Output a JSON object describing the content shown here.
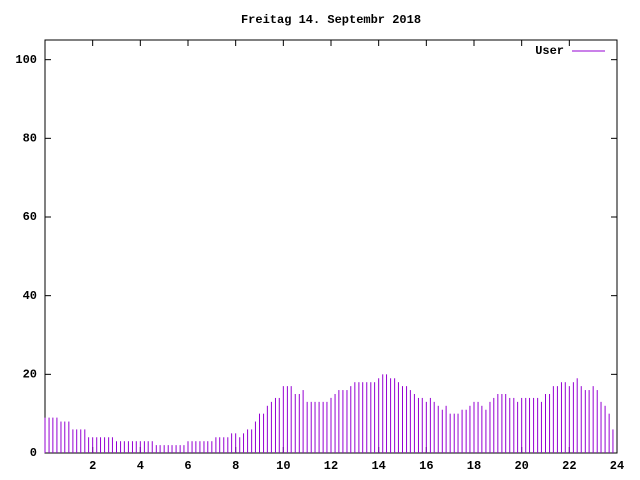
{
  "chart_data": {
    "type": "impulse",
    "title": "Freitag 14. Septembr 2018",
    "x": [
      0,
      0.17,
      0.33,
      0.5,
      0.67,
      0.83,
      1,
      1.17,
      1.33,
      1.5,
      1.67,
      1.83,
      2,
      2.17,
      2.33,
      2.5,
      2.67,
      2.83,
      3,
      3.17,
      3.33,
      3.5,
      3.67,
      3.83,
      4,
      4.17,
      4.33,
      4.5,
      4.67,
      4.83,
      5,
      5.17,
      5.33,
      5.5,
      5.67,
      5.83,
      6,
      6.17,
      6.33,
      6.5,
      6.67,
      6.83,
      7,
      7.17,
      7.33,
      7.5,
      7.67,
      7.83,
      8,
      8.17,
      8.33,
      8.5,
      8.67,
      8.83,
      9,
      9.17,
      9.33,
      9.5,
      9.67,
      9.83,
      10,
      10.17,
      10.33,
      10.5,
      10.67,
      10.83,
      11,
      11.17,
      11.33,
      11.5,
      11.67,
      11.83,
      12,
      12.17,
      12.33,
      12.5,
      12.67,
      12.83,
      13,
      13.17,
      13.33,
      13.5,
      13.67,
      13.83,
      14,
      14.17,
      14.33,
      14.5,
      14.67,
      14.83,
      15,
      15.17,
      15.33,
      15.5,
      15.67,
      15.83,
      16,
      16.17,
      16.33,
      16.5,
      16.67,
      16.83,
      17,
      17.17,
      17.33,
      17.5,
      17.67,
      17.83,
      18,
      18.17,
      18.33,
      18.5,
      18.67,
      18.83,
      19,
      19.17,
      19.33,
      19.5,
      19.67,
      19.83,
      20,
      20.17,
      20.33,
      20.5,
      20.67,
      20.83,
      21,
      21.17,
      21.33,
      21.5,
      21.67,
      21.83,
      22,
      22.17,
      22.33,
      22.5,
      22.67,
      22.83,
      23,
      23.17,
      23.33,
      23.5,
      23.67,
      23.83
    ],
    "series": [
      {
        "name": "User",
        "color": "#9400d3",
        "values": [
          9,
          9,
          9,
          9,
          8,
          8,
          8,
          6,
          6,
          6,
          6,
          4,
          4,
          4,
          4,
          4,
          4,
          4,
          3,
          3,
          3,
          3,
          3,
          3,
          3,
          3,
          3,
          3,
          2,
          2,
          2,
          2,
          2,
          2,
          2,
          2,
          3,
          3,
          3,
          3,
          3,
          3,
          3,
          4,
          4,
          4,
          4,
          5,
          5,
          4,
          5,
          6,
          6,
          8,
          10,
          10,
          12,
          13,
          14,
          14,
          17,
          17,
          17,
          15,
          15,
          16,
          13,
          13,
          13,
          13,
          13,
          13,
          14,
          15,
          16,
          16,
          16,
          17,
          18,
          18,
          18,
          18,
          18,
          18,
          19,
          20,
          20,
          19,
          19,
          18,
          17,
          17,
          16,
          15,
          14,
          14,
          13,
          14,
          13,
          12,
          11,
          12,
          10,
          10,
          10,
          11,
          11,
          12,
          13,
          13,
          12,
          11,
          13,
          14,
          15,
          15,
          15,
          14,
          14,
          13,
          14,
          14,
          14,
          14,
          14,
          13,
          15,
          15,
          17,
          17,
          18,
          18,
          17,
          18,
          19,
          17,
          16,
          16,
          17,
          16,
          13,
          12,
          10,
          6
        ]
      }
    ],
    "xlim": [
      0,
      24
    ],
    "xticks": [
      2,
      4,
      6,
      8,
      10,
      12,
      14,
      16,
      18,
      20,
      22,
      24
    ],
    "ylim": [
      0,
      105
    ],
    "yticks": [
      0,
      20,
      40,
      60,
      80,
      100
    ],
    "legend": "top-right"
  }
}
